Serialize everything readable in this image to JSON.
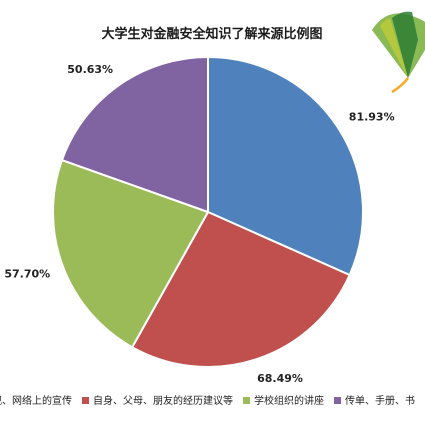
{
  "chart_data": {
    "type": "pie",
    "title": "大学生对金融安全知识了解来源比例图",
    "slices": [
      {
        "label": "电视、网络上的宣传",
        "value": 81.93,
        "display": "81.93%",
        "color": "#4F81BD"
      },
      {
        "label": "自身、父母、朋友的经历建议等",
        "value": 68.49,
        "display": "68.49%",
        "color": "#C0504D"
      },
      {
        "label": "学校组织的讲座",
        "value": 57.7,
        "display": "57.70%",
        "color": "#9BBB59"
      },
      {
        "label": "传单、手册、书刊",
        "value": 50.63,
        "display": "50.63%",
        "color": "#8064A2"
      }
    ],
    "legend_position": "bottom",
    "legend_visible_text": [
      "视、网络上的宣传",
      "自身、父母、朋友的经历建议等",
      "学校组织的讲座",
      "传单、手册、书"
    ]
  },
  "decor": {
    "logo_icon": "ginkgo-leaf-icon",
    "logo_colors": [
      "#2E7D32",
      "#7CB342",
      "#C0CA33",
      "#F9A825"
    ]
  }
}
